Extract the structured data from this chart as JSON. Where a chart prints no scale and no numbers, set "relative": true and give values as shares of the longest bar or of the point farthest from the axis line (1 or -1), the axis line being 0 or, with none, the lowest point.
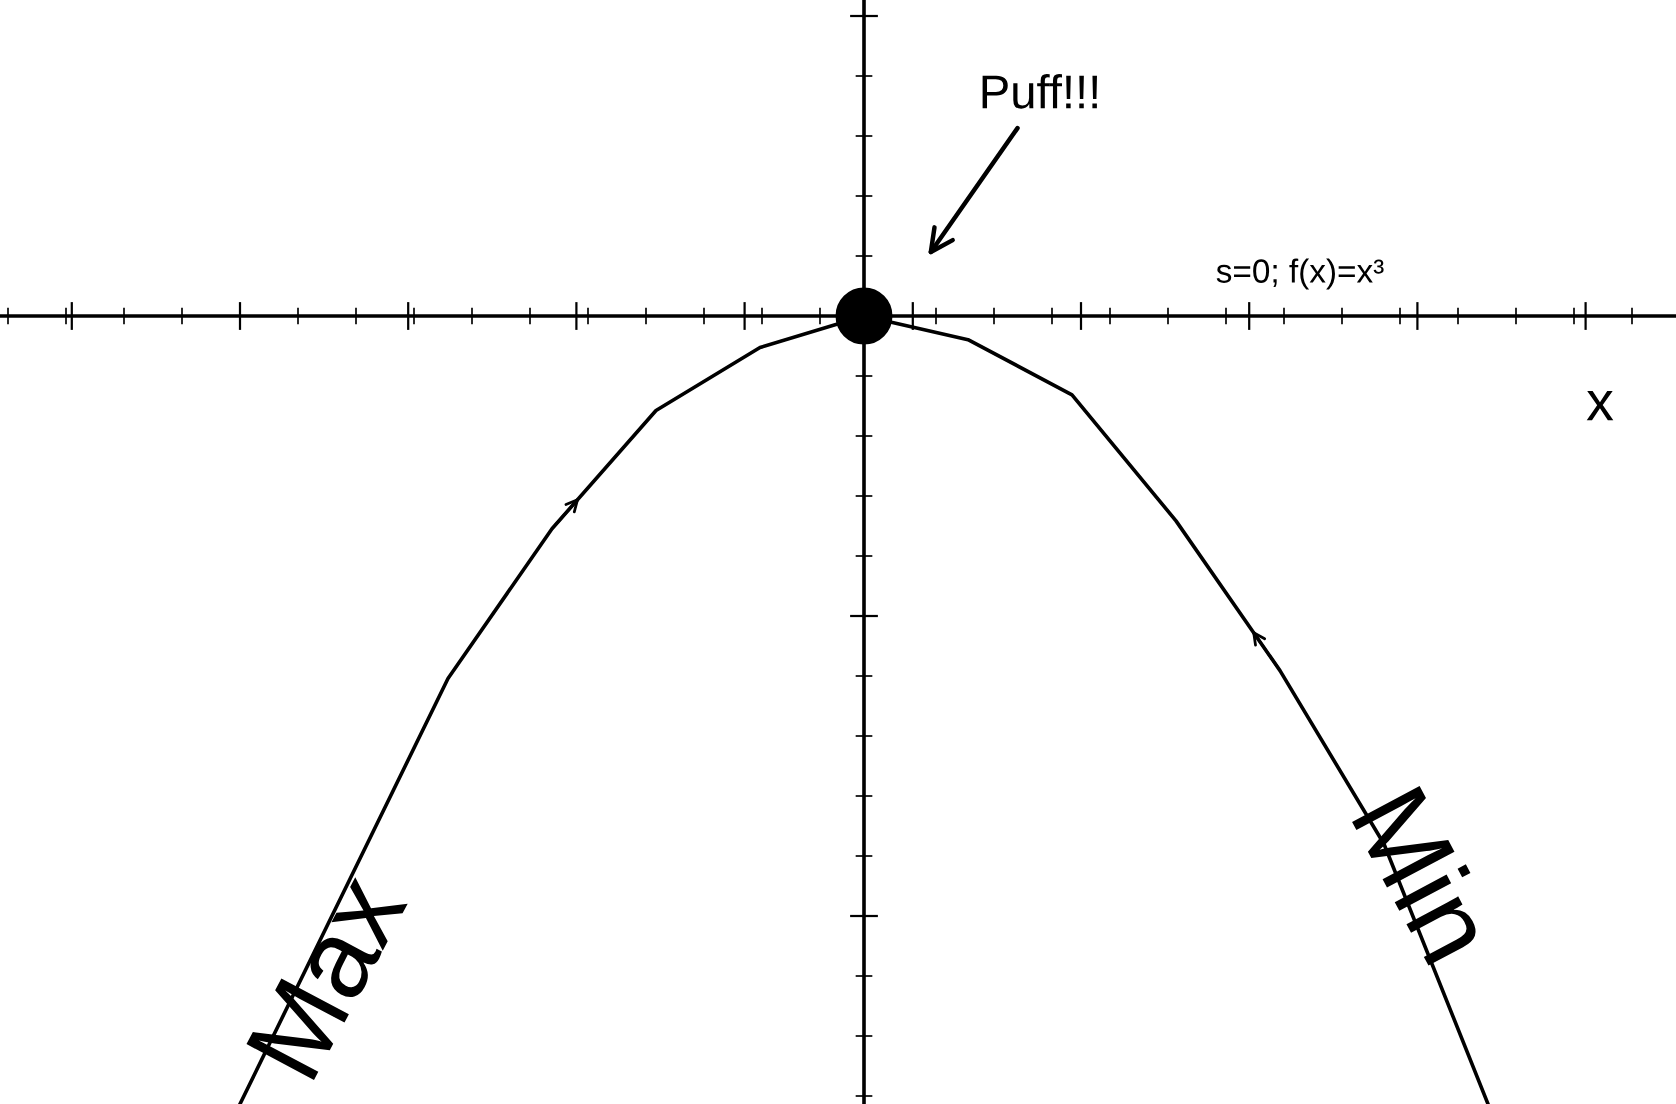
{
  "chart_data": {
    "type": "line",
    "relative": true,
    "xlabel": "x",
    "tick_labels": false,
    "grid": false,
    "legend": false,
    "line_style": "solid",
    "marker": "none",
    "categories": [
      null,
      null,
      null,
      null,
      null,
      null,
      null,
      null,
      null,
      null,
      null,
      null,
      null
    ],
    "annotations": [
      "Puff!!!",
      "s=0; f(x)=x³",
      "Max",
      "Min"
    ],
    "series": [
      {
        "color": "#000000",
        "values": [
          -1,
          -0.73,
          -0.46,
          -0.27,
          -0.12,
          -0.04,
          0,
          -0.03,
          -0.1,
          -0.26,
          -0.45,
          -0.67,
          -1
        ]
      }
    ]
  }
}
